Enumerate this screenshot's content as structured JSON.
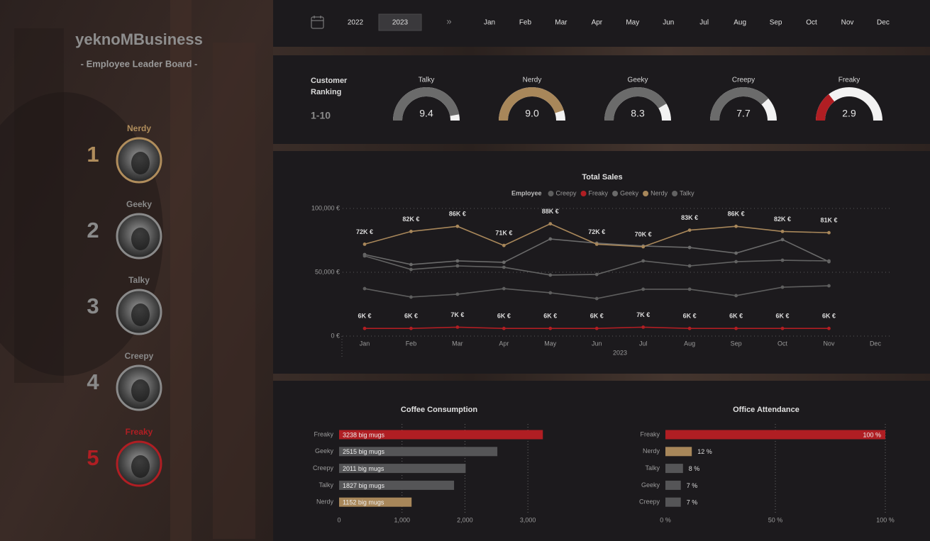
{
  "sidebar": {
    "brand_left": "yeknoM",
    "brand_right": "Business",
    "tagline": "- Employee Leader Board -",
    "ranking": [
      {
        "rank": 1,
        "name": "Nerdy",
        "color": "#b08d5c"
      },
      {
        "rank": 2,
        "name": "Geeky",
        "color": "#8a8a8a"
      },
      {
        "rank": 3,
        "name": "Talky",
        "color": "#8a8a8a"
      },
      {
        "rank": 4,
        "name": "Creepy",
        "color": "#8a8a8a"
      },
      {
        "rank": 5,
        "name": "Freaky",
        "color": "#b01e23"
      }
    ]
  },
  "header": {
    "years": [
      2022,
      2023
    ],
    "selected_year": 2023,
    "months": [
      "Jan",
      "Feb",
      "Mar",
      "Apr",
      "May",
      "Jun",
      "Jul",
      "Aug",
      "Sep",
      "Oct",
      "Nov",
      "Dec"
    ]
  },
  "chart_data": [
    {
      "type": "gauge",
      "title": "Customer Ranking",
      "subtitle": "1-10",
      "lim": [
        0,
        10
      ],
      "categories": [
        "Talky",
        "Nerdy",
        "Geeky",
        "Creepy",
        "Freaky"
      ],
      "values": [
        9.4,
        9,
        8.3,
        7.7,
        2.9
      ],
      "value_labels": [
        "9.4",
        "9.0",
        "8.3",
        "7.7",
        "2.9"
      ],
      "colors": [
        "#6b6b6b",
        "#a8875a",
        "#6b6b6b",
        "#6b6b6b",
        "#b01e23"
      ],
      "track_color": "#f2f2f2"
    },
    {
      "type": "line",
      "title": "Total Sales",
      "legend_title": "Employee",
      "x_label": "2023",
      "categories": [
        "Jan",
        "Feb",
        "Mar",
        "Apr",
        "May",
        "Jun",
        "Jul",
        "Aug",
        "Sep",
        "Oct",
        "Nov",
        "Dec"
      ],
      "ylim": [
        0,
        100000
      ],
      "yticks": [
        {
          "value": 0,
          "label": "0 €"
        },
        {
          "value": 50000,
          "label": "50,000 €"
        },
        {
          "value": 100000,
          "label": "100,000 €"
        }
      ],
      "grid": true,
      "series": [
        {
          "name": "Creepy",
          "color": "#5e5e5e",
          "values": [
            37200,
            30600,
            32800,
            37200,
            33900,
            29400,
            36700,
            36700,
            31700,
            38300,
            39400,
            null
          ]
        },
        {
          "name": "Freaky",
          "color": "#b01e23",
          "values": [
            6000,
            6000,
            7000,
            6000,
            6000,
            6000,
            7000,
            6000,
            6000,
            6000,
            6000,
            null
          ],
          "value_labels": [
            "6K €",
            "6K €",
            "7K €",
            "6K €",
            "6K €",
            "6K €",
            "7K €",
            "6K €",
            "6K €",
            "6K €",
            "6K €",
            null
          ]
        },
        {
          "name": "Geeky",
          "color": "#6a6a6a",
          "values": [
            63900,
            56100,
            58900,
            57800,
            76100,
            72800,
            70600,
            69400,
            65000,
            75600,
            58300,
            null
          ]
        },
        {
          "name": "Nerdy",
          "color": "#a8875a",
          "values": [
            72000,
            82000,
            86000,
            71000,
            88000,
            72000,
            70000,
            83000,
            86000,
            82000,
            81000,
            null
          ],
          "value_labels": [
            "72K €",
            "82K €",
            "86K €",
            "71K €",
            "88K €",
            "72K €",
            "70K €",
            "83K €",
            "86K €",
            "82K €",
            "81K €",
            null
          ]
        },
        {
          "name": "Talky",
          "color": "#626262",
          "values": [
            62800,
            52200,
            55000,
            53900,
            47800,
            48300,
            58900,
            55000,
            58300,
            59400,
            58900,
            null
          ]
        }
      ]
    },
    {
      "type": "hbar",
      "title": "Coffee Consumption",
      "categories": [
        "Freaky",
        "Geeky",
        "Creepy",
        "Talky",
        "Nerdy"
      ],
      "values": [
        3238,
        2515,
        2011,
        1827,
        1152
      ],
      "value_labels": [
        "3238 big mugs",
        "2515 big mugs",
        "2011 big mugs",
        "1827 big mugs",
        "1152 big mugs"
      ],
      "colors": [
        "#b01e23",
        "#555557",
        "#555557",
        "#555557",
        "#a8875a"
      ],
      "label_position": "inside-start",
      "xlim": [
        0,
        3500
      ],
      "xticks": [
        0,
        {
          "value": 1000,
          "label": "1,000"
        },
        {
          "value": 2000,
          "label": "2,000"
        },
        {
          "value": 3000,
          "label": "3,000"
        }
      ],
      "grid": true
    },
    {
      "type": "hbar",
      "title": "Office Attendance",
      "categories": [
        "Freaky",
        "Nerdy",
        "Talky",
        "Geeky",
        "Creepy"
      ],
      "values": [
        100,
        12,
        8,
        7,
        7
      ],
      "value_labels": [
        "100 %",
        "12 %",
        "8 %",
        "7 %",
        "7 %"
      ],
      "colors": [
        "#b01e23",
        "#a8875a",
        "#555557",
        "#555557",
        "#555557"
      ],
      "label_position": "end",
      "xlim": [
        0,
        100
      ],
      "xticks": [
        {
          "value": 0,
          "label": "0 %"
        },
        {
          "value": 50,
          "label": "50 %"
        },
        {
          "value": 100,
          "label": "100 %"
        }
      ],
      "grid": true
    }
  ]
}
